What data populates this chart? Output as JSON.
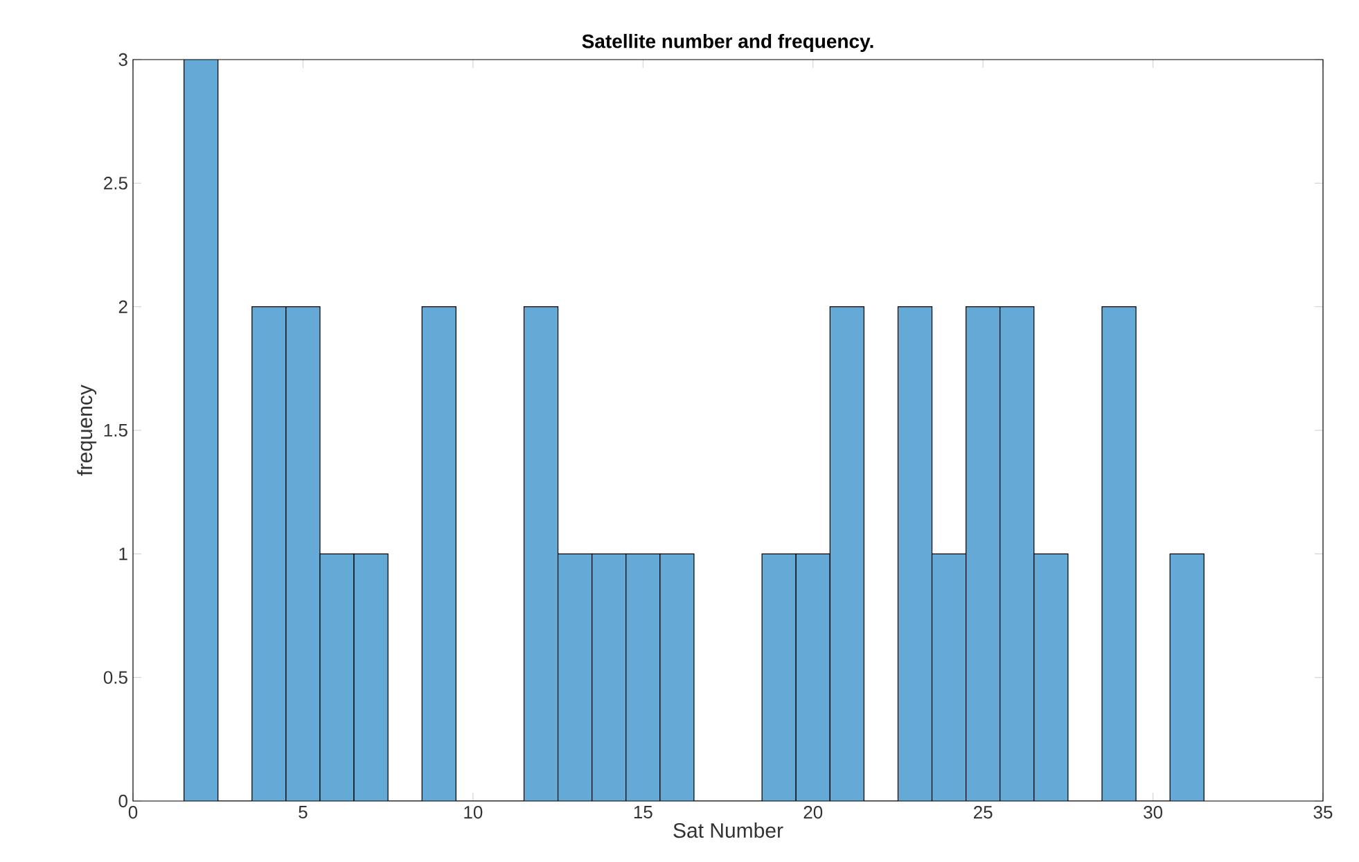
{
  "chart_data": {
    "type": "histogram",
    "title": "Satellite number and frequency.",
    "xlabel": "Sat Number",
    "ylabel": "frequency",
    "bins": [
      1.5,
      2.5,
      3.5,
      4.5,
      5.5,
      6.5,
      7.5,
      8.5,
      9.5,
      10.5,
      11.5,
      12.5,
      13.5,
      14.5,
      15.5,
      16.5,
      17.5,
      18.5,
      19.5,
      20.5,
      21.5,
      22.5,
      23.5,
      24.5,
      25.5,
      26.5,
      27.5,
      28.5,
      29.5,
      30.5,
      31.5
    ],
    "values": [
      3,
      0,
      2,
      2,
      1,
      1,
      0,
      2,
      0,
      0,
      2,
      1,
      1,
      1,
      1,
      0,
      0,
      1,
      1,
      2,
      0,
      2,
      1,
      2,
      2,
      1,
      0,
      2,
      0,
      1
    ],
    "color": "#65a9d7",
    "xlim": [
      0,
      35
    ],
    "ylim": [
      0,
      3
    ],
    "xticks": [
      0,
      5,
      10,
      15,
      20,
      25,
      30,
      35
    ],
    "yticks": [
      0,
      0.5,
      1,
      1.5,
      2,
      2.5,
      3
    ],
    "grid": false
  }
}
